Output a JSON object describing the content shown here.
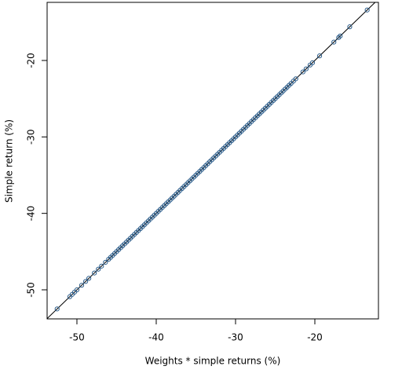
{
  "chart_data": {
    "type": "scatter",
    "xlabel": "Weights * simple returns (%)",
    "ylabel": "Simple return (%)",
    "xlim": [
      -53.76,
      -11.98
    ],
    "ylim": [
      -53.8,
      -12.4
    ],
    "xticks": [
      -50,
      -40,
      -30,
      -20
    ],
    "yticks": [
      -50,
      -40,
      -30,
      -20
    ],
    "color": "#2b5c8a",
    "reference_line": "identity",
    "x": [
      -52.5,
      -50.9,
      -50.6,
      -50.3,
      -50.0,
      -49.4,
      -48.9,
      -48.5,
      -47.8,
      -47.3,
      -46.9,
      -46.4,
      -46,
      -45.75,
      -45.5,
      -45.25,
      -45,
      -44.75,
      -44.5,
      -44.25,
      -44,
      -43.75,
      -43.5,
      -43.25,
      -43,
      -42.75,
      -42.5,
      -42.25,
      -42,
      -41.75,
      -41.5,
      -41.25,
      -41,
      -40.75,
      -40.5,
      -40.25,
      -40,
      -39.75,
      -39.5,
      -39.25,
      -39,
      -38.75,
      -38.5,
      -38.25,
      -38,
      -37.75,
      -37.5,
      -37.25,
      -37,
      -36.75,
      -36.5,
      -36.25,
      -36,
      -35.75,
      -35.5,
      -35.25,
      -35,
      -34.75,
      -34.5,
      -34.25,
      -34,
      -33.75,
      -33.5,
      -33.25,
      -33,
      -32.75,
      -32.5,
      -32.25,
      -32,
      -31.75,
      -31.5,
      -31.25,
      -31,
      -30.75,
      -30.5,
      -30.25,
      -30,
      -29.75,
      -29.5,
      -29.25,
      -29,
      -28.75,
      -28.5,
      -28.25,
      -28,
      -27.75,
      -27.5,
      -27.25,
      -27,
      -26.75,
      -26.5,
      -26.25,
      -26,
      -25.75,
      -25.5,
      -25.25,
      -25,
      -24.75,
      -24.5,
      -24.25,
      -24,
      -23.75,
      -23.5,
      -23.25,
      -23,
      -22.7,
      -22.4,
      -21.5,
      -21.1,
      -20.6,
      -20.3,
      -19.4,
      -17.6,
      -17.0,
      -16.8,
      -15.6,
      -13.4
    ],
    "y": [
      -52.5,
      -50.9,
      -50.6,
      -50.3,
      -50.0,
      -49.4,
      -48.9,
      -48.5,
      -47.8,
      -47.3,
      -46.9,
      -46.4,
      -46,
      -45.75,
      -45.5,
      -45.25,
      -45,
      -44.75,
      -44.5,
      -44.25,
      -44,
      -43.75,
      -43.5,
      -43.25,
      -43,
      -42.75,
      -42.5,
      -42.25,
      -42,
      -41.75,
      -41.5,
      -41.25,
      -41,
      -40.75,
      -40.5,
      -40.25,
      -40,
      -39.75,
      -39.5,
      -39.25,
      -39,
      -38.75,
      -38.5,
      -38.25,
      -38,
      -37.75,
      -37.5,
      -37.25,
      -37,
      -36.75,
      -36.5,
      -36.25,
      -36,
      -35.75,
      -35.5,
      -35.25,
      -35,
      -34.75,
      -34.5,
      -34.25,
      -34,
      -33.75,
      -33.5,
      -33.25,
      -33,
      -32.75,
      -32.5,
      -32.25,
      -32,
      -31.75,
      -31.5,
      -31.25,
      -31,
      -30.75,
      -30.5,
      -30.25,
      -30,
      -29.75,
      -29.5,
      -29.25,
      -29,
      -28.75,
      -28.5,
      -28.25,
      -28,
      -27.75,
      -27.5,
      -27.25,
      -27,
      -26.75,
      -26.5,
      -26.25,
      -26,
      -25.75,
      -25.5,
      -25.25,
      -25,
      -24.75,
      -24.5,
      -24.25,
      -24,
      -23.75,
      -23.5,
      -23.25,
      -23,
      -22.7,
      -22.4,
      -21.5,
      -21.1,
      -20.6,
      -20.3,
      -19.4,
      -17.6,
      -17.0,
      -16.8,
      -15.6,
      -13.4
    ]
  }
}
